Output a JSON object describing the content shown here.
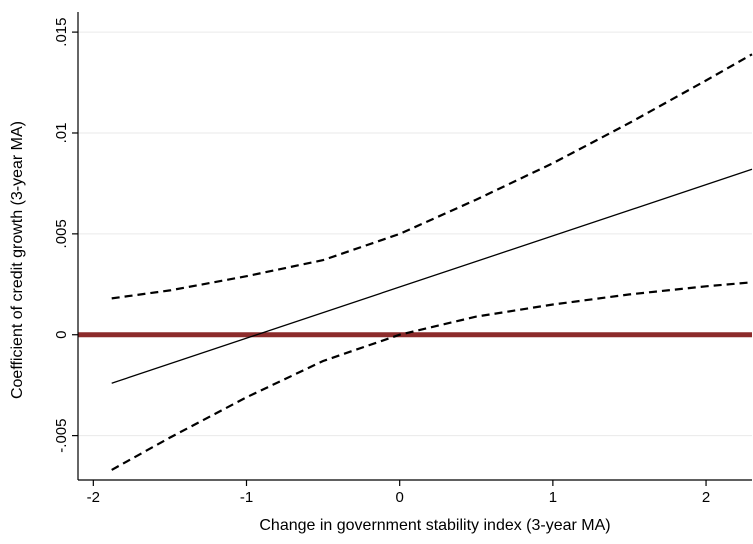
{
  "chart_data": {
    "type": "line",
    "xlabel": "Change in government stability index (3-year MA)",
    "ylabel": "Coefficient of credit growth (3-year MA)",
    "xlim": [
      -2.1,
      2.3
    ],
    "ylim": [
      -0.0072,
      0.0156
    ],
    "xticks": [
      {
        "value": -2,
        "label": "-2"
      },
      {
        "value": -1,
        "label": "-1"
      },
      {
        "value": 0,
        "label": "0"
      },
      {
        "value": 1,
        "label": "1"
      },
      {
        "value": 2,
        "label": "2"
      }
    ],
    "yticks": [
      {
        "value": -0.005,
        "label": "-.005"
      },
      {
        "value": 0,
        "label": "0"
      },
      {
        "value": 0.005,
        "label": ".005"
      },
      {
        "value": 0.01,
        "label": ".01"
      },
      {
        "value": 0.015,
        "label": ".015"
      }
    ],
    "grid": true,
    "reference_line": {
      "y": 0,
      "color": "#8c2b2b"
    },
    "series": [
      {
        "style": "solid",
        "x": [
          -1.88,
          2.3
        ],
        "y": [
          -0.0024,
          0.0082
        ]
      },
      {
        "style": "dashed",
        "x": [
          -1.88,
          -1.5,
          -1.0,
          -0.5,
          0.0,
          0.5,
          1.0,
          1.5,
          2.0,
          2.3
        ],
        "y": [
          0.0018,
          0.0022,
          0.0029,
          0.0037,
          0.005,
          0.0067,
          0.0085,
          0.0105,
          0.0126,
          0.0139
        ]
      },
      {
        "style": "dashed",
        "x": [
          -1.88,
          -1.5,
          -1.0,
          -0.5,
          0.0,
          0.5,
          1.0,
          1.5,
          2.0,
          2.3
        ],
        "y": [
          -0.0067,
          -0.0051,
          -0.0031,
          -0.0013,
          0.0,
          0.0009,
          0.0015,
          0.002,
          0.0024,
          0.0026
        ]
      }
    ]
  }
}
